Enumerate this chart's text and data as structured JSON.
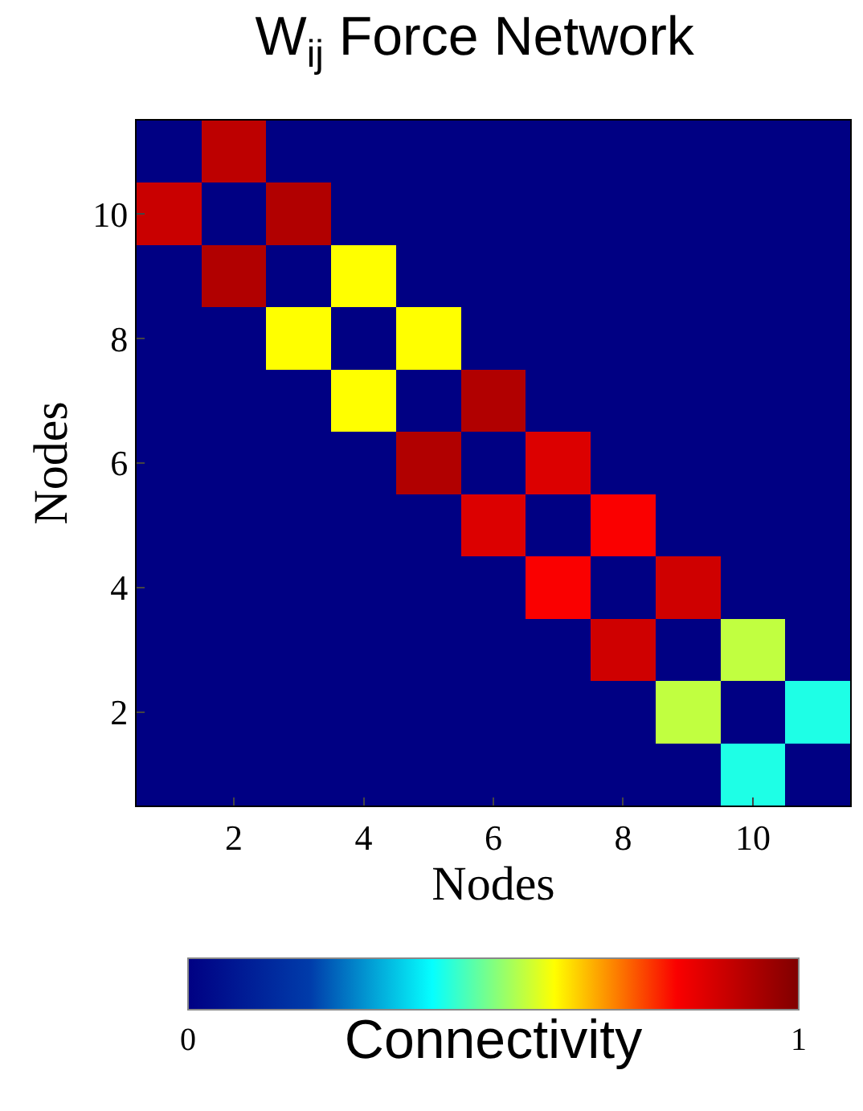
{
  "chart_data": {
    "type": "heatmap",
    "title": "W$_{ij}$ Force Network",
    "xlabel": "Nodes",
    "ylabel": "Nodes",
    "clabel": "Connectivity",
    "categories": [
      null,
      "2",
      null,
      "4",
      null,
      "6",
      null,
      "8",
      null,
      "10",
      null
    ],
    "y_categories": [
      null,
      "10",
      null,
      "8",
      null,
      "6",
      null,
      "4",
      null,
      "2",
      null
    ],
    "cells": [
      [
        0,
        0.9,
        0,
        0,
        0,
        0,
        0,
        0,
        0,
        0,
        0
      ],
      [
        0.88,
        0,
        0.92,
        0,
        0,
        0,
        0,
        0,
        0,
        0,
        0
      ],
      [
        0,
        0.92,
        0,
        0.6,
        0,
        0,
        0,
        0,
        0,
        0,
        0
      ],
      [
        0,
        0,
        0.6,
        0,
        0.6,
        0,
        0,
        0,
        0,
        0,
        0
      ],
      [
        0,
        0,
        0,
        0.6,
        0,
        0.92,
        0,
        0,
        0,
        0,
        0
      ],
      [
        0,
        0,
        0,
        0,
        0.92,
        0,
        0.85,
        0,
        0,
        0,
        0
      ],
      [
        0,
        0,
        0,
        0,
        0,
        0.85,
        0,
        0.8,
        0,
        0,
        0
      ],
      [
        0,
        0,
        0,
        0,
        0,
        0,
        0.8,
        0,
        0.87,
        0,
        0
      ],
      [
        0,
        0,
        0,
        0,
        0,
        0,
        0,
        0.87,
        0,
        0.55,
        0
      ],
      [
        0,
        0,
        0,
        0,
        0,
        0,
        0,
        0,
        0.55,
        0,
        0.42
      ],
      [
        0,
        0,
        0,
        0,
        0,
        0,
        0,
        0,
        0,
        0.42,
        0
      ]
    ],
    "clim": [
      0,
      1
    ],
    "cticks": [
      0,
      1
    ]
  }
}
